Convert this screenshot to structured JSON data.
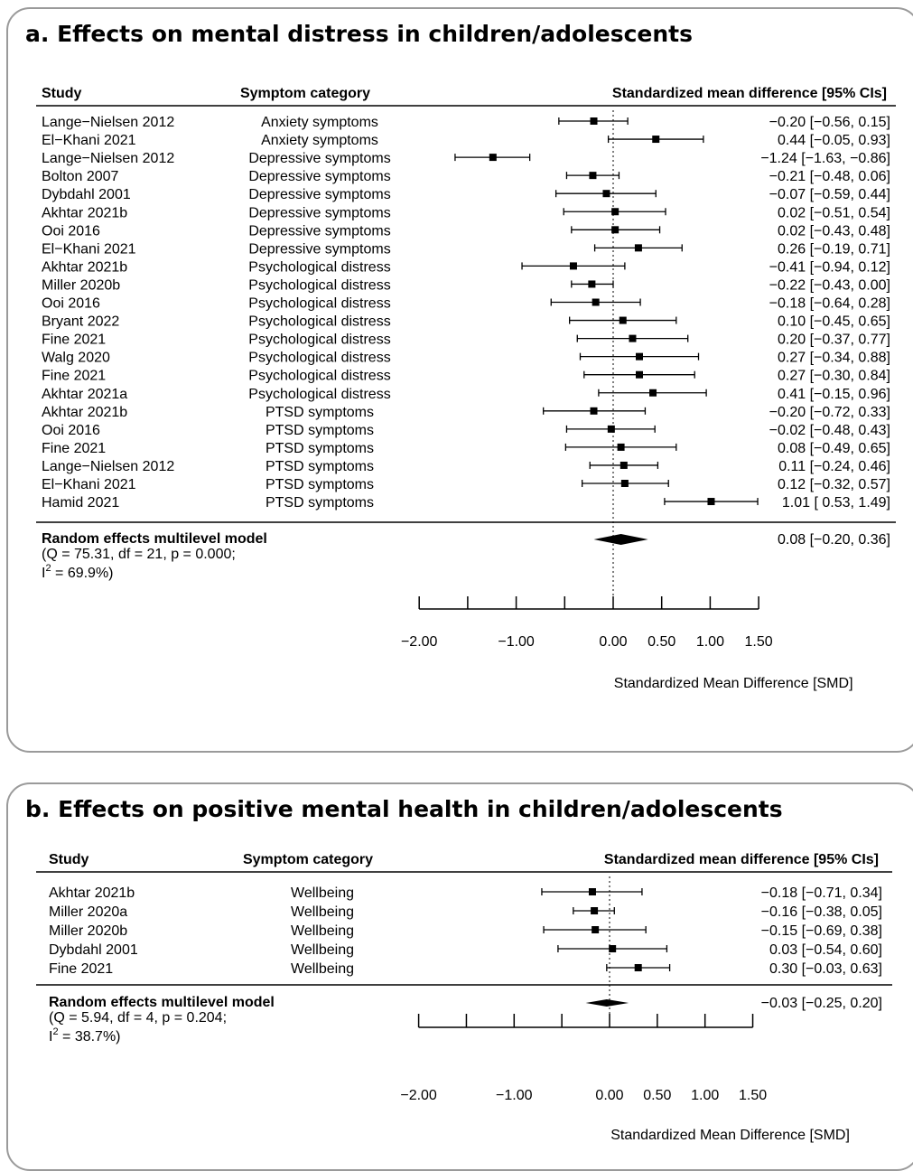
{
  "chart_data": [
    {
      "type": "forest",
      "title": "a. Effects on mental distress in children/adolescents",
      "headers": {
        "study": "Study",
        "category": "Symptom category",
        "effect": "Standardized mean difference [95% CIs]"
      },
      "rows": [
        {
          "study": "Lange−Nielsen 2012",
          "category": "Anxiety symptoms",
          "estimate": -0.2,
          "lower": -0.56,
          "upper": 0.15,
          "label": "−0.20 [−0.56,  0.15]"
        },
        {
          "study": "El−Khani 2021",
          "category": "Anxiety symptoms",
          "estimate": 0.44,
          "lower": -0.05,
          "upper": 0.93,
          "label": "0.44 [−0.05,  0.93]"
        },
        {
          "study": "Lange−Nielsen 2012",
          "category": "Depressive symptoms",
          "estimate": -1.24,
          "lower": -1.63,
          "upper": -0.86,
          "label": "−1.24 [−1.63, −0.86]"
        },
        {
          "study": "Bolton 2007",
          "category": "Depressive symptoms",
          "estimate": -0.21,
          "lower": -0.48,
          "upper": 0.06,
          "label": "−0.21 [−0.48,  0.06]"
        },
        {
          "study": "Dybdahl 2001",
          "category": "Depressive symptoms",
          "estimate": -0.07,
          "lower": -0.59,
          "upper": 0.44,
          "label": "−0.07 [−0.59,  0.44]"
        },
        {
          "study": "Akhtar 2021b",
          "category": "Depressive symptoms",
          "estimate": 0.02,
          "lower": -0.51,
          "upper": 0.54,
          "label": "0.02 [−0.51,  0.54]"
        },
        {
          "study": "Ooi 2016",
          "category": "Depressive symptoms",
          "estimate": 0.02,
          "lower": -0.43,
          "upper": 0.48,
          "label": "0.02 [−0.43,  0.48]"
        },
        {
          "study": "El−Khani 2021",
          "category": "Depressive symptoms",
          "estimate": 0.26,
          "lower": -0.19,
          "upper": 0.71,
          "label": "0.26 [−0.19,  0.71]"
        },
        {
          "study": "Akhtar 2021b",
          "category": "Psychological distress",
          "estimate": -0.41,
          "lower": -0.94,
          "upper": 0.12,
          "label": "−0.41 [−0.94,  0.12]"
        },
        {
          "study": "Miller 2020b",
          "category": "Psychological distress",
          "estimate": -0.22,
          "lower": -0.43,
          "upper": 0.0,
          "label": "−0.22 [−0.43,  0.00]"
        },
        {
          "study": "Ooi 2016",
          "category": "Psychological distress",
          "estimate": -0.18,
          "lower": -0.64,
          "upper": 0.28,
          "label": "−0.18 [−0.64,  0.28]"
        },
        {
          "study": "Bryant 2022",
          "category": "Psychological distress",
          "estimate": 0.1,
          "lower": -0.45,
          "upper": 0.65,
          "label": "0.10 [−0.45,  0.65]"
        },
        {
          "study": "Fine 2021",
          "category": "Psychological distress",
          "estimate": 0.2,
          "lower": -0.37,
          "upper": 0.77,
          "label": "0.20 [−0.37,  0.77]"
        },
        {
          "study": "Walg 2020",
          "category": "Psychological distress",
          "estimate": 0.27,
          "lower": -0.34,
          "upper": 0.88,
          "label": "0.27 [−0.34,  0.88]"
        },
        {
          "study": "Fine 2021",
          "category": "Psychological distress",
          "estimate": 0.27,
          "lower": -0.3,
          "upper": 0.84,
          "label": "0.27 [−0.30,  0.84]"
        },
        {
          "study": "Akhtar 2021a",
          "category": "Psychological distress",
          "estimate": 0.41,
          "lower": -0.15,
          "upper": 0.96,
          "label": "0.41 [−0.15,  0.96]"
        },
        {
          "study": "Akhtar 2021b",
          "category": "PTSD symptoms",
          "estimate": -0.2,
          "lower": -0.72,
          "upper": 0.33,
          "label": "−0.20 [−0.72,  0.33]"
        },
        {
          "study": "Ooi 2016",
          "category": "PTSD symptoms",
          "estimate": -0.02,
          "lower": -0.48,
          "upper": 0.43,
          "label": "−0.02 [−0.48,  0.43]"
        },
        {
          "study": "Fine 2021",
          "category": "PTSD symptoms",
          "estimate": 0.08,
          "lower": -0.49,
          "upper": 0.65,
          "label": "0.08 [−0.49,  0.65]"
        },
        {
          "study": "Lange−Nielsen 2012",
          "category": "PTSD symptoms",
          "estimate": 0.11,
          "lower": -0.24,
          "upper": 0.46,
          "label": "0.11 [−0.24,  0.46]"
        },
        {
          "study": "El−Khani 2021",
          "category": "PTSD symptoms",
          "estimate": 0.12,
          "lower": -0.32,
          "upper": 0.57,
          "label": "0.12 [−0.32,  0.57]"
        },
        {
          "study": "Hamid 2021",
          "category": "PTSD symptoms",
          "estimate": 1.01,
          "lower": 0.53,
          "upper": 1.49,
          "label": "1.01 [ 0.53,  1.49]"
        }
      ],
      "summary": {
        "title": "Random effects multilevel model",
        "stats_line1": "(Q = 75.31, df = 21, p = 0.000;",
        "i2_prefix": "I",
        "i2_sup": "2",
        "i2_rest": " = 69.9%)",
        "estimate": 0.08,
        "lower": -0.2,
        "upper": 0.36,
        "label": "0.08 [−0.20,  0.36]"
      },
      "x_ticks": [
        -2.0,
        -1.5,
        -1.0,
        -0.5,
        0.0,
        0.5,
        1.0,
        1.5
      ],
      "x_tick_labels": [
        {
          "value": -2.0,
          "text": "−2.00"
        },
        {
          "value": -1.0,
          "text": "−1.00"
        },
        {
          "value": 0.0,
          "text": "0.00"
        },
        {
          "value": 0.5,
          "text": "0.50"
        },
        {
          "value": 1.0,
          "text": "1.00"
        },
        {
          "value": 1.5,
          "text": "1.50"
        }
      ],
      "xlim": [
        -2.0,
        1.5
      ],
      "xlabel": "Standardized Mean Difference [SMD]",
      "reference_line": 0
    },
    {
      "type": "forest",
      "title": "b. Effects on positive mental health in children/adolescents",
      "headers": {
        "study": "Study",
        "category": "Symptom category",
        "effect": "Standardized mean difference [95% CIs]"
      },
      "rows": [
        {
          "study": "Akhtar 2021b",
          "category": "Wellbeing",
          "estimate": -0.18,
          "lower": -0.71,
          "upper": 0.34,
          "label": "−0.18 [−0.71, 0.34]"
        },
        {
          "study": "Miller 2020a",
          "category": "Wellbeing",
          "estimate": -0.16,
          "lower": -0.38,
          "upper": 0.05,
          "label": "−0.16 [−0.38, 0.05]"
        },
        {
          "study": "Miller 2020b",
          "category": "Wellbeing",
          "estimate": -0.15,
          "lower": -0.69,
          "upper": 0.38,
          "label": "−0.15 [−0.69, 0.38]"
        },
        {
          "study": "Dybdahl 2001",
          "category": "Wellbeing",
          "estimate": 0.03,
          "lower": -0.54,
          "upper": 0.6,
          "label": "0.03 [−0.54, 0.60]"
        },
        {
          "study": "Fine 2021",
          "category": "Wellbeing",
          "estimate": 0.3,
          "lower": -0.03,
          "upper": 0.63,
          "label": "0.30 [−0.03, 0.63]"
        }
      ],
      "summary": {
        "title": "Random effects multilevel model",
        "stats_line1": "(Q = 5.94, df = 4, p = 0.204;",
        "i2_prefix": "I",
        "i2_sup": "2",
        "i2_rest": " = 38.7%)",
        "estimate": -0.03,
        "lower": -0.25,
        "upper": 0.2,
        "label": "−0.03 [−0.25, 0.20]"
      },
      "x_ticks": [
        -2.0,
        -1.5,
        -1.0,
        -0.5,
        0.0,
        0.5,
        1.0,
        1.5
      ],
      "x_tick_labels": [
        {
          "value": -2.0,
          "text": "−2.00"
        },
        {
          "value": -1.0,
          "text": "−1.00"
        },
        {
          "value": 0.0,
          "text": "0.00"
        },
        {
          "value": 0.5,
          "text": "0.50"
        },
        {
          "value": 1.0,
          "text": "1.00"
        },
        {
          "value": 1.5,
          "text": "1.50"
        }
      ],
      "xlim": [
        -2.0,
        1.5
      ],
      "xlabel": "Standardized Mean Difference [SMD]",
      "reference_line": 0
    }
  ]
}
